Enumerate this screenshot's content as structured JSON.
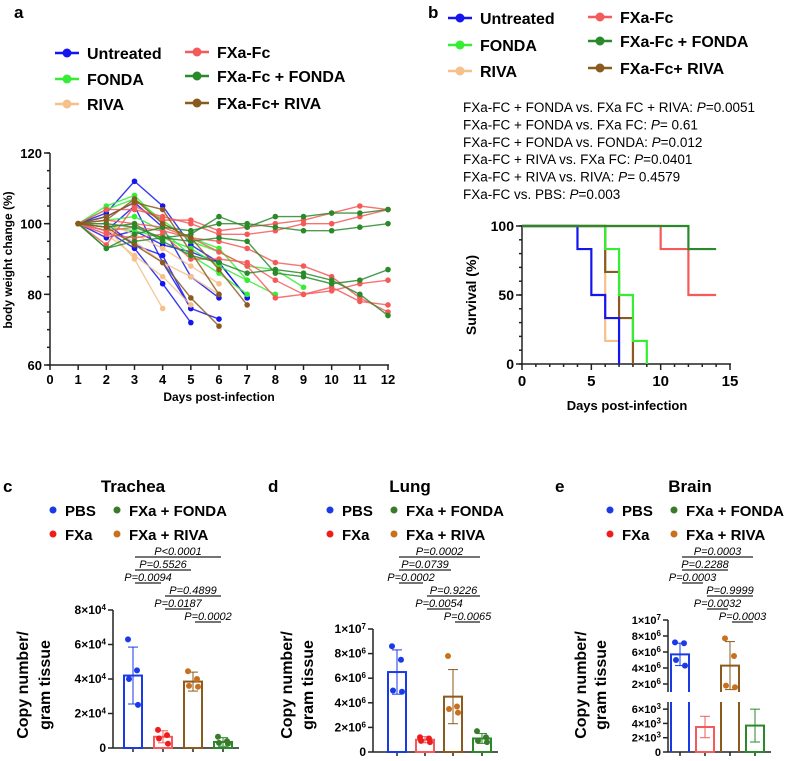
{
  "colors": {
    "untreated": "#1515f0",
    "fonda": "#33ee33",
    "riva": "#f5c08a",
    "fxa": "#f55a5a",
    "fxa_fonda": "#2a8a2a",
    "fxa_riva": "#8b5a1e",
    "pbs": "#1a3ae8",
    "fxa_dot": "#ee1c1c",
    "riva_dot": "#c8701e",
    "fonda_dot": "#3a7a2a"
  },
  "panel_labels": {
    "a": "a",
    "b": "b",
    "c": "c",
    "d": "d",
    "e": "e"
  },
  "chart_data": [
    {
      "type": "line",
      "id": "a",
      "xlabel": "Days post-infection",
      "ylabel": "body weight change (%)",
      "xlim": [
        0,
        12
      ],
      "ylim": [
        60,
        120
      ],
      "xticks": [
        0,
        1,
        2,
        3,
        4,
        5,
        6,
        7,
        8,
        9,
        10,
        11,
        12
      ],
      "yticks": [
        60,
        80,
        100,
        120
      ],
      "legend": [
        "Untreated",
        "FONDA",
        "RIVA",
        "FXa-Fc",
        "FXa-Fc + FONDA",
        "FXa-Fc+ RIVA"
      ],
      "series": [
        {
          "name": "Untreated",
          "color_key": "untreated",
          "lines": [
            [
              100,
              103,
              112,
              105,
              94,
              89,
              79
            ],
            [
              100,
              102,
              106,
              99,
              85,
              79
            ],
            [
              100,
              98,
              93,
              83,
              72
            ],
            [
              100,
              100,
              94,
              91,
              76
            ],
            [
              100,
              98,
              105,
              89,
              76,
              73
            ],
            [
              100,
              96,
              98,
              94,
              92,
              89,
              79
            ]
          ]
        },
        {
          "name": "FONDA",
          "color_key": "fonda",
          "lines": [
            [
              100,
              105,
              108,
              100,
              96,
              93,
              84
            ],
            [
              100,
              101,
              102,
              98,
              91,
              86,
              80
            ],
            [
              100,
              99,
              98,
              96,
              93,
              88,
              84,
              80
            ],
            [
              100,
              104,
              107,
              101,
              95,
              92,
              88,
              87,
              82
            ]
          ]
        },
        {
          "name": "RIVA",
          "color_key": "riva",
          "lines": [
            [
              100,
              99,
              90,
              76
            ],
            [
              100,
              97,
              91,
              85,
              77
            ],
            [
              100,
              100,
              97,
              93,
              88,
              83
            ],
            [
              100,
              98,
              95,
              89,
              85,
              80
            ]
          ]
        },
        {
          "name": "FXa-Fc",
          "color_key": "fxa",
          "lines": [
            [
              100,
              94,
              105,
              101,
              101,
              98,
              99,
              100,
              101,
              103,
              105,
              104
            ],
            [
              100,
              104,
              104,
              102,
              100,
              97,
              97,
              98,
              100,
              100,
              102,
              104
            ],
            [
              100,
              97,
              96,
              97,
              90,
              90,
              89,
              84,
              80,
              81,
              83,
              84
            ],
            [
              100,
              98,
              99,
              98,
              96,
              95,
              93,
              89,
              88,
              85,
              79,
              75
            ],
            [
              100,
              101,
              100,
              99,
              96,
              92,
              88,
              79,
              80,
              82,
              78,
              77
            ]
          ]
        },
        {
          "name": "FXa-Fc + FONDA",
          "color_key": "fxa_fonda",
          "lines": [
            [
              100,
              93,
              95,
              96,
              97,
              102,
              99,
              102,
              102,
              103,
              103,
              104
            ],
            [
              100,
              93,
              97,
              99,
              98,
              100,
              100,
              99,
              98,
              98,
              99,
              100
            ],
            [
              100,
              100,
              99,
              96,
              95,
              96,
              95,
              86,
              85,
              83,
              84,
              87
            ],
            [
              100,
              99,
              100,
              95,
              91,
              89,
              86,
              87,
              86,
              84,
              80,
              74
            ]
          ]
        },
        {
          "name": "FXa-Fc+ RIVA",
          "color_key": "fxa_riva",
          "lines": [
            [
              100,
              102,
              106,
              104,
              92,
              80
            ],
            [
              100,
              99,
              94,
              89,
              79,
              71
            ],
            [
              100,
              101,
              107,
              100,
              96,
              87,
              77
            ]
          ]
        }
      ]
    },
    {
      "type": "line",
      "id": "b",
      "subtype": "kaplan-meier",
      "xlabel": "Days post-infection",
      "ylabel": "Survival (%)",
      "xlim": [
        0,
        15
      ],
      "ylim": [
        0,
        100
      ],
      "xticks": [
        0,
        5,
        10,
        15
      ],
      "yticks": [
        0,
        50,
        100
      ],
      "legend": [
        "Untreated",
        "FONDA",
        "RIVA",
        "FXa-Fc",
        "FXa-Fc + FONDA",
        "FXa-Fc+ RIVA"
      ],
      "annotations": [
        {
          "text": "FXa-FC + FONDA vs. FXa FC + RIVA: ",
          "p": "P",
          "val": "=0.0051"
        },
        {
          "text": "FXa-FC + FONDA vs. FXa FC: ",
          "p": "P",
          "val": "= 0.61"
        },
        {
          "text": "FXa-FC + FONDA vs. FONDA: ",
          "p": "P",
          "val": "=0.012"
        },
        {
          "text": "FXa-FC + RIVA vs. FXa FC: ",
          "p": "P",
          "val": "=0.0401"
        },
        {
          "text": "FXa-FC + RIVA vs. RIVA: ",
          "p": "P",
          "val": "= 0.4579"
        },
        {
          "text": "FXa-FC vs. PBS: ",
          "p": "P",
          "val": "=0.003"
        }
      ],
      "series": [
        {
          "name": "RIVA",
          "color_key": "riva",
          "steps": [
            [
              0,
              100
            ],
            [
              6,
              16.7
            ],
            [
              7,
              0
            ]
          ]
        },
        {
          "name": "FXa-Fc+ RIVA",
          "color_key": "fxa_riva",
          "steps": [
            [
              0,
              100
            ],
            [
              6,
              66.7
            ],
            [
              7,
              33.3
            ],
            [
              8,
              0
            ]
          ]
        },
        {
          "name": "FONDA",
          "color_key": "fonda",
          "steps": [
            [
              0,
              100
            ],
            [
              6,
              83.3
            ],
            [
              7,
              50
            ],
            [
              8,
              16.7
            ],
            [
              9,
              0
            ]
          ]
        },
        {
          "name": "Untreated",
          "color_key": "untreated",
          "steps": [
            [
              0,
              100
            ],
            [
              4,
              83.3
            ],
            [
              5,
              50
            ],
            [
              6,
              33.3
            ],
            [
              7,
              0
            ]
          ]
        },
        {
          "name": "FXa-Fc",
          "color_key": "fxa",
          "steps": [
            [
              0,
              100
            ],
            [
              10,
              83.3
            ],
            [
              12,
              50
            ],
            [
              14,
              50
            ]
          ]
        },
        {
          "name": "FXa-Fc + FONDA",
          "color_key": "fxa_fonda",
          "steps": [
            [
              0,
              100
            ],
            [
              12,
              83.3
            ],
            [
              14,
              83.3
            ]
          ]
        }
      ]
    },
    {
      "type": "bar",
      "id": "c",
      "title": "Trachea",
      "ylabel": [
        "Copy number/",
        "gram tissue"
      ],
      "ylim": [
        0,
        80000
      ],
      "yticks": [
        {
          "v": 0,
          "t": "0"
        },
        {
          "v": 20000,
          "t": "2×10",
          "e": "4"
        },
        {
          "v": 40000,
          "t": "4×10",
          "e": "4"
        },
        {
          "v": 60000,
          "t": "6×10",
          "e": "4"
        },
        {
          "v": 80000,
          "t": "8×10",
          "e": "4"
        }
      ],
      "categories": [
        "PBS",
        "FXa",
        "FXa + RIVA",
        "FXa + FONDA"
      ],
      "values": [
        42000,
        6500,
        38500,
        3500
      ],
      "sd": [
        16500,
        3500,
        5500,
        2500
      ],
      "points": [
        [
          63000,
          45000,
          40000,
          25000
        ],
        [
          10500,
          7500,
          5500,
          2500
        ],
        [
          44500,
          40000,
          36000,
          35500
        ],
        [
          6500,
          4000,
          3000,
          2500
        ]
      ],
      "pvalues": [
        {
          "a": 0,
          "b": 3,
          "text": "P<0.0001"
        },
        {
          "a": 0,
          "b": 2,
          "text": "P=0.5526"
        },
        {
          "a": 0,
          "b": 1,
          "text": "P=0.0094"
        },
        {
          "a": 1,
          "b": 3,
          "text": "P=0.4899"
        },
        {
          "a": 1,
          "b": 2,
          "text": "P=0.0187"
        },
        {
          "a": 2,
          "b": 3,
          "text": "P=0.0002"
        }
      ]
    },
    {
      "type": "bar",
      "id": "d",
      "title": "Lung",
      "ylabel": [
        "Copy number/",
        "gram tissue"
      ],
      "ylim": [
        0,
        10000000
      ],
      "yticks": [
        {
          "v": 0,
          "t": "0"
        },
        {
          "v": 2000000,
          "t": "2×10",
          "e": "6"
        },
        {
          "v": 4000000,
          "t": "4×10",
          "e": "6"
        },
        {
          "v": 6000000,
          "t": "6×10",
          "e": "6"
        },
        {
          "v": 8000000,
          "t": "8×10",
          "e": "6"
        },
        {
          "v": 10000000,
          "t": "1×10",
          "e": "7"
        }
      ],
      "categories": [
        "PBS",
        "FXa",
        "FXa + RIVA",
        "FXa + FONDA"
      ],
      "values": [
        6500000,
        1000000,
        4500000,
        1100000
      ],
      "sd": [
        1800000,
        250000,
        2200000,
        400000
      ],
      "points": [
        [
          8600000,
          7500000,
          5000000,
          4900000
        ],
        [
          1200000,
          1100000,
          900000,
          800000
        ],
        [
          7800000,
          3700000,
          3500000,
          3200000
        ],
        [
          1700000,
          1200000,
          900000,
          800000
        ]
      ],
      "pvalues": [
        {
          "a": 0,
          "b": 3,
          "text": "P=0.0002"
        },
        {
          "a": 0,
          "b": 2,
          "text": "P=0.0739"
        },
        {
          "a": 0,
          "b": 1,
          "text": "P=0.0002"
        },
        {
          "a": 1,
          "b": 3,
          "text": "P=0.9226"
        },
        {
          "a": 1,
          "b": 2,
          "text": "P=0.0054"
        },
        {
          "a": 2,
          "b": 3,
          "text": "P=0.0065"
        }
      ]
    },
    {
      "type": "bar",
      "id": "e",
      "title": "Brain",
      "ylabel": [
        "Copy number/",
        "gram tissue"
      ],
      "broken_axis": true,
      "ylim_low": [
        0,
        7000
      ],
      "ylim_high": [
        1000000,
        10000000
      ],
      "yticks_low": [
        {
          "v": 0,
          "t": "0"
        },
        {
          "v": 2000,
          "t": "2×10",
          "e": "3"
        },
        {
          "v": 4000,
          "t": "4×10",
          "e": "3"
        },
        {
          "v": 6000,
          "t": "6×10",
          "e": "3"
        }
      ],
      "yticks_high": [
        {
          "v": 2000000,
          "t": "2×10",
          "e": "6"
        },
        {
          "v": 4000000,
          "t": "4×10",
          "e": "6"
        },
        {
          "v": 6000000,
          "t": "6×10",
          "e": "6"
        },
        {
          "v": 8000000,
          "t": "8×10",
          "e": "6"
        },
        {
          "v": 10000000,
          "t": "1×10",
          "e": "7"
        }
      ],
      "categories": [
        "PBS",
        "FXa",
        "FXa + RIVA",
        "FXa + FONDA"
      ],
      "values": [
        5700000,
        3500,
        4300000,
        3700
      ],
      "sd": [
        1400000,
        1500,
        3000000,
        2300
      ],
      "points": [
        [
          7200000,
          7100000,
          5000000,
          4300000
        ],
        [
          5300000,
          4300000,
          3000000,
          2500000
        ],
        [
          7700000,
          5500000,
          1800000,
          1600000
        ],
        [
          7000000,
          4000000,
          3000000,
          3000000
        ]
      ],
      "points_units": [
        "high",
        "low",
        "high",
        "low"
      ],
      "pvalues": [
        {
          "a": 0,
          "b": 3,
          "text": "P=0.0003"
        },
        {
          "a": 0,
          "b": 2,
          "text": "P=0.2288"
        },
        {
          "a": 0,
          "b": 1,
          "text": "P=0.0003"
        },
        {
          "a": 1,
          "b": 3,
          "text": "P=0.9999"
        },
        {
          "a": 1,
          "b": 2,
          "text": "P=0.0032"
        },
        {
          "a": 2,
          "b": 3,
          "text": "P=0.0003"
        }
      ]
    }
  ]
}
